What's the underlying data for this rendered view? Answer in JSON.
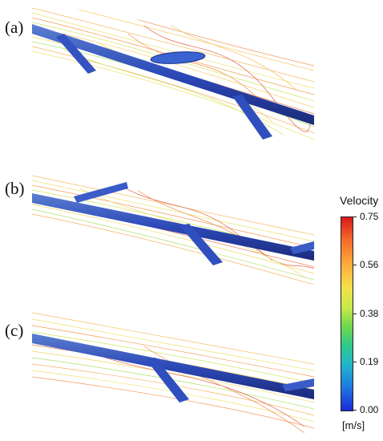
{
  "panels": [
    {
      "label": "(a)"
    },
    {
      "label": "(b)"
    },
    {
      "label": "(c)"
    }
  ],
  "legend": {
    "title": "Velocity",
    "unit": "[m/s]",
    "ticks": [
      "0.75",
      "0.56",
      "0.38",
      "0.19",
      "0.00"
    ],
    "colors": {
      "max": "#d7191c",
      "mid_high": "#f3e24a",
      "mid": "#6ad84b",
      "mid_low": "#22b6c8",
      "min": "#1a2ad6"
    }
  }
}
